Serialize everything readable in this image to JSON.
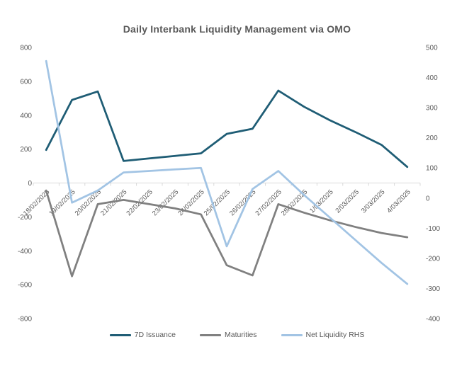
{
  "title": "Daily Interbank Liquidity Management via OMO",
  "colors": {
    "issuance_line": "#1f5d75",
    "maturities_line": "#808080",
    "net_liquidity_line": "#a2c4e4",
    "axis_line": "#d9d9d9",
    "axis_text": "#595959",
    "title_text": "#595959",
    "background": "#ffffff"
  },
  "chart_data": {
    "type": "line",
    "title": "Daily Interbank Liquidity Management via OMO",
    "categories": [
      "18/02/2025",
      "19/02/2025",
      "20/02/2025",
      "21/02/2025",
      "22/02/2025",
      "23/02/2025",
      "24/02/2025",
      "25/02/2025",
      "26/02/2025",
      "27/02/2025",
      "28/02/2025",
      "1/03/2025",
      "2/03/2025",
      "3/03/2025",
      "4/03/2025"
    ],
    "series": [
      {
        "name": "7D Issuance",
        "axis": "left",
        "color": "#1f5d75",
        "values": [
          195,
          490,
          540,
          130,
          145,
          160,
          175,
          290,
          320,
          545,
          450,
          370,
          300,
          225,
          95
        ]
      },
      {
        "name": "Maturities",
        "axis": "left",
        "color": "#808080",
        "values": [
          -45,
          -550,
          -125,
          -100,
          -125,
          -150,
          -185,
          -485,
          -545,
          -125,
          -175,
          -220,
          -260,
          -295,
          -320
        ]
      },
      {
        "name": "Net Liquidity RHS",
        "axis": "right",
        "color": "#a2c4e4",
        "values": [
          455,
          -15,
          25,
          85,
          90,
          95,
          100,
          -160,
          30,
          90,
          10,
          -65,
          -140,
          -215,
          -285
        ]
      }
    ],
    "left_axis": {
      "min": -800,
      "max": 800,
      "ticks": [
        800,
        600,
        400,
        200,
        0,
        -200,
        -400,
        -600,
        -800
      ]
    },
    "right_axis": {
      "min": -400,
      "max": 500,
      "ticks": [
        500,
        400,
        300,
        200,
        100,
        0,
        -100,
        -200,
        -300,
        -400
      ]
    },
    "grid": false,
    "legend_position": "bottom",
    "x_label_rotation_deg": -45
  }
}
